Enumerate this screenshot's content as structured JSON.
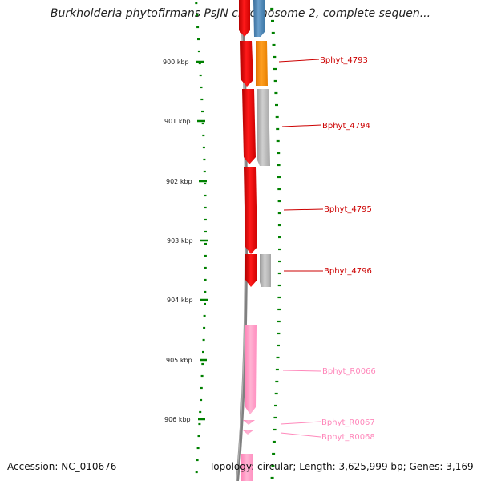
{
  "title": "Burkholderia phytofirmans PsJN chromosome 2, complete sequen...",
  "accession": "Accession: NC_010676",
  "topology": "Topology: circular; Length: 3,625,999 bp; Genes: 3,169",
  "scale_labels": [
    "900 kbp",
    "901 kbp",
    "902 kbp",
    "903 kbp",
    "904 kbp",
    "905 kbp",
    "906 kbp"
  ],
  "genes": [
    {
      "name": "Bphyt_4793",
      "color": "#cc0000"
    },
    {
      "name": "Bphyt_4794",
      "color": "#cc0000"
    },
    {
      "name": "Bphyt_4795",
      "color": "#cc0000"
    },
    {
      "name": "Bphyt_4796",
      "color": "#cc0000"
    },
    {
      "name": "Bphyt_R0066",
      "color": "#ff88bb"
    },
    {
      "name": "Bphyt_R0067",
      "color": "#ff88bb"
    },
    {
      "name": "Bphyt_R0068",
      "color": "#ff88bb"
    }
  ],
  "colors": {
    "cds_forward": "#ff0000",
    "rna": "#ff99cc",
    "gene_orange": "#ff8c00",
    "gene_blue": "#4682b4",
    "gene_grey": "#a9a9a9",
    "backbone": "#808080",
    "ticks": "#008000"
  }
}
